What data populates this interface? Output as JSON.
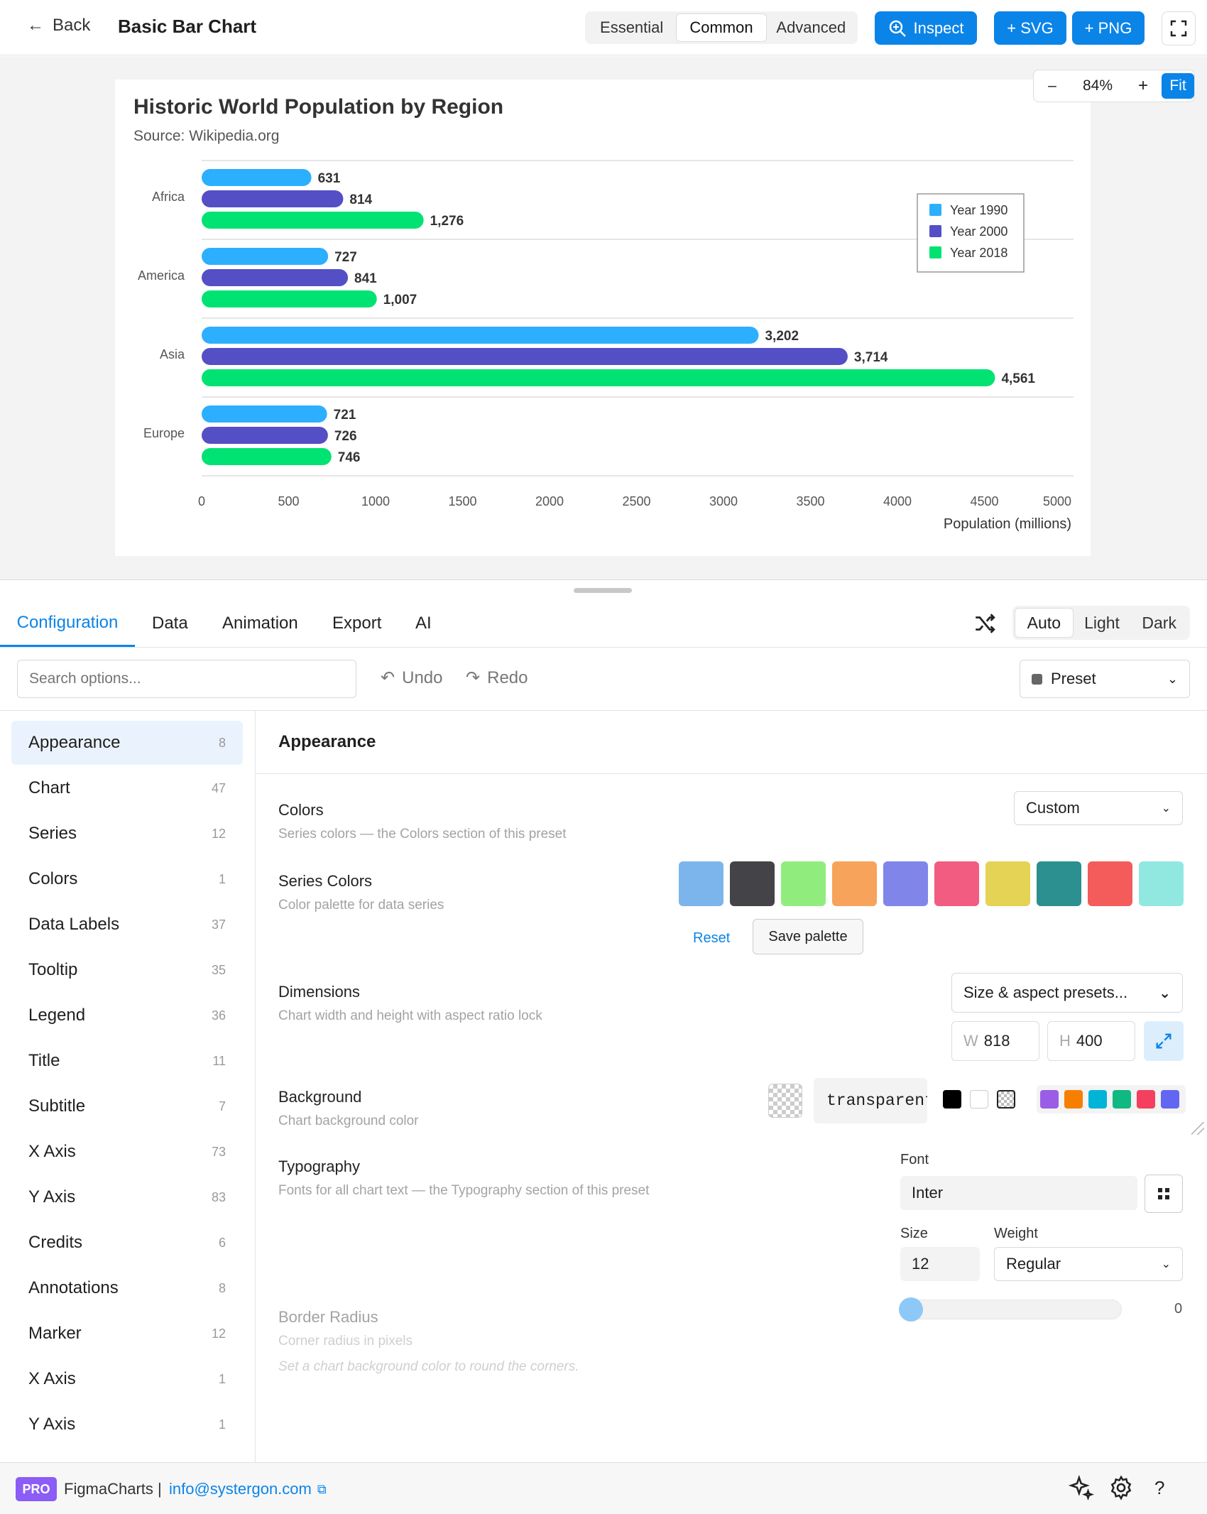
{
  "header": {
    "back_label": "Back",
    "title": "Basic Bar Chart",
    "modes": [
      "Essential",
      "Common",
      "Advanced"
    ],
    "active_mode": "Common",
    "inspect_label": "Inspect",
    "svg_label": "+ SVG",
    "png_label": "+ PNG"
  },
  "zoom": {
    "minus": "–",
    "value": "84%",
    "plus": "+",
    "fit": "Fit"
  },
  "chart_data": {
    "type": "bar",
    "orientation": "horizontal",
    "title": "Historic World Population by Region",
    "subtitle": "Source: Wikipedia.org",
    "xlabel": "Population (millions)",
    "ylabel": "",
    "categories": [
      "Africa",
      "America",
      "Asia",
      "Europe"
    ],
    "series": [
      {
        "name": "Year 1990",
        "color": "#2caffe",
        "values": [
          631,
          727,
          3202,
          721
        ],
        "labels": [
          "631",
          "727",
          "3,202",
          "721"
        ]
      },
      {
        "name": "Year 2000",
        "color": "#544fc5",
        "values": [
          814,
          841,
          3714,
          726
        ],
        "labels": [
          "814",
          "841",
          "3,714",
          "726"
        ]
      },
      {
        "name": "Year 2018",
        "color": "#00e272",
        "values": [
          1276,
          1007,
          4561,
          746
        ],
        "labels": [
          "1,276",
          "1,007",
          "4,561",
          "746"
        ]
      }
    ],
    "xlim": [
      0,
      5000
    ],
    "ticks": [
      "0",
      "500",
      "1000",
      "1500",
      "2000",
      "2500",
      "3000",
      "3500",
      "4000",
      "4500",
      "5000"
    ],
    "legend": "top-right",
    "grid": true
  },
  "tabs": {
    "items": [
      "Configuration",
      "Data",
      "Animation",
      "Export",
      "AI"
    ],
    "active": "Configuration"
  },
  "theme": {
    "items": [
      "Auto",
      "Light",
      "Dark"
    ],
    "active": "Auto"
  },
  "toolbar": {
    "search_placeholder": "Search options...",
    "undo": "Undo",
    "redo": "Redo",
    "preset": "Preset"
  },
  "sidebar": {
    "items": [
      {
        "label": "Appearance",
        "count": "8"
      },
      {
        "label": "Chart",
        "count": "47"
      },
      {
        "label": "Series",
        "count": "12"
      },
      {
        "label": "Colors",
        "count": "1"
      },
      {
        "label": "Data Labels",
        "count": "37"
      },
      {
        "label": "Tooltip",
        "count": "35"
      },
      {
        "label": "Legend",
        "count": "36"
      },
      {
        "label": "Title",
        "count": "11"
      },
      {
        "label": "Subtitle",
        "count": "7"
      },
      {
        "label": "X Axis",
        "count": "73"
      },
      {
        "label": "Y Axis",
        "count": "83"
      },
      {
        "label": "Credits",
        "count": "6"
      },
      {
        "label": "Annotations",
        "count": "8"
      },
      {
        "label": "Marker",
        "count": "12"
      },
      {
        "label": "X Axis",
        "count": "1"
      },
      {
        "label": "Y Axis",
        "count": "1"
      }
    ]
  },
  "panel": {
    "heading": "Appearance",
    "colors": {
      "label": "Colors",
      "desc": "Series colors — the Colors section of this preset",
      "value": "Custom"
    },
    "series_colors": {
      "label": "Series Colors",
      "desc": "Color palette for data series",
      "swatches": [
        "#7cb5ec",
        "#434348",
        "#90ed7d",
        "#f7a35c",
        "#8085e9",
        "#f15c80",
        "#e4d354",
        "#2b908f",
        "#f45b5b",
        "#91e8e1"
      ],
      "reset": "Reset",
      "save": "Save palette"
    },
    "dimensions": {
      "label": "Dimensions",
      "desc": "Chart width and height with aspect ratio lock",
      "preset": "Size & aspect presets...",
      "w_label": "W",
      "w": "818",
      "h_label": "H",
      "h": "400"
    },
    "background": {
      "label": "Background",
      "desc": "Chart background color",
      "value": "transparent",
      "quick": [
        "#000000",
        "#ffffff",
        "transparent"
      ],
      "palette": [
        "#9b5de5",
        "#f77f00",
        "#00b4d8",
        "#10b981",
        "#f43f5e",
        "#6366f1"
      ]
    },
    "typography": {
      "label": "Typography",
      "desc": "Fonts for all chart text — the Typography section of this preset",
      "font_label": "Font",
      "font": "Inter",
      "size_label": "Size",
      "size": "12",
      "weight_label": "Weight",
      "weight": "Regular"
    },
    "border_radius": {
      "label": "Border Radius",
      "desc": "Corner radius in pixels",
      "hint": "Set a chart background color to round the corners.",
      "value": "0"
    }
  },
  "footer": {
    "badge": "PRO",
    "app": "FigmaCharts",
    "sep": "|",
    "email": "info@systergon.com"
  }
}
